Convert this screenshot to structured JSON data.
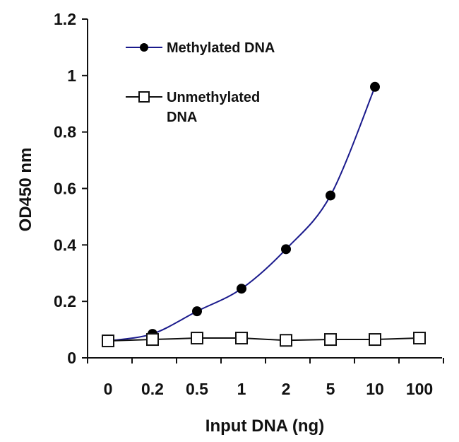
{
  "chart_data": {
    "type": "line",
    "title": "",
    "xlabel": "Input DNA (ng)",
    "ylabel": "OD450 nm",
    "categories": [
      "0",
      "0.2",
      "0.5",
      "1",
      "2",
      "5",
      "10",
      "100"
    ],
    "ylim": [
      0,
      1.2
    ],
    "yticks": [
      "0",
      "0.2",
      "0.4",
      "0.6",
      "0.8",
      "1",
      "1.2"
    ],
    "grid": false,
    "legend_position": "top-left",
    "series": [
      {
        "name": "Methylated DNA",
        "marker": "filled-circle",
        "line_color": "#1a1a8c",
        "values": [
          0.06,
          0.085,
          0.165,
          0.245,
          0.385,
          0.575,
          0.96,
          null
        ]
      },
      {
        "name": "Unmethylated DNA",
        "marker": "open-square",
        "line_color": "#111111",
        "values": [
          0.06,
          0.065,
          0.07,
          0.07,
          0.062,
          0.065,
          0.065,
          0.07
        ]
      }
    ],
    "legend": {
      "methylated_label": "Methylated DNA",
      "unmethylated_label_line1": "Unmethylated",
      "unmethylated_label_line2": "DNA"
    }
  }
}
